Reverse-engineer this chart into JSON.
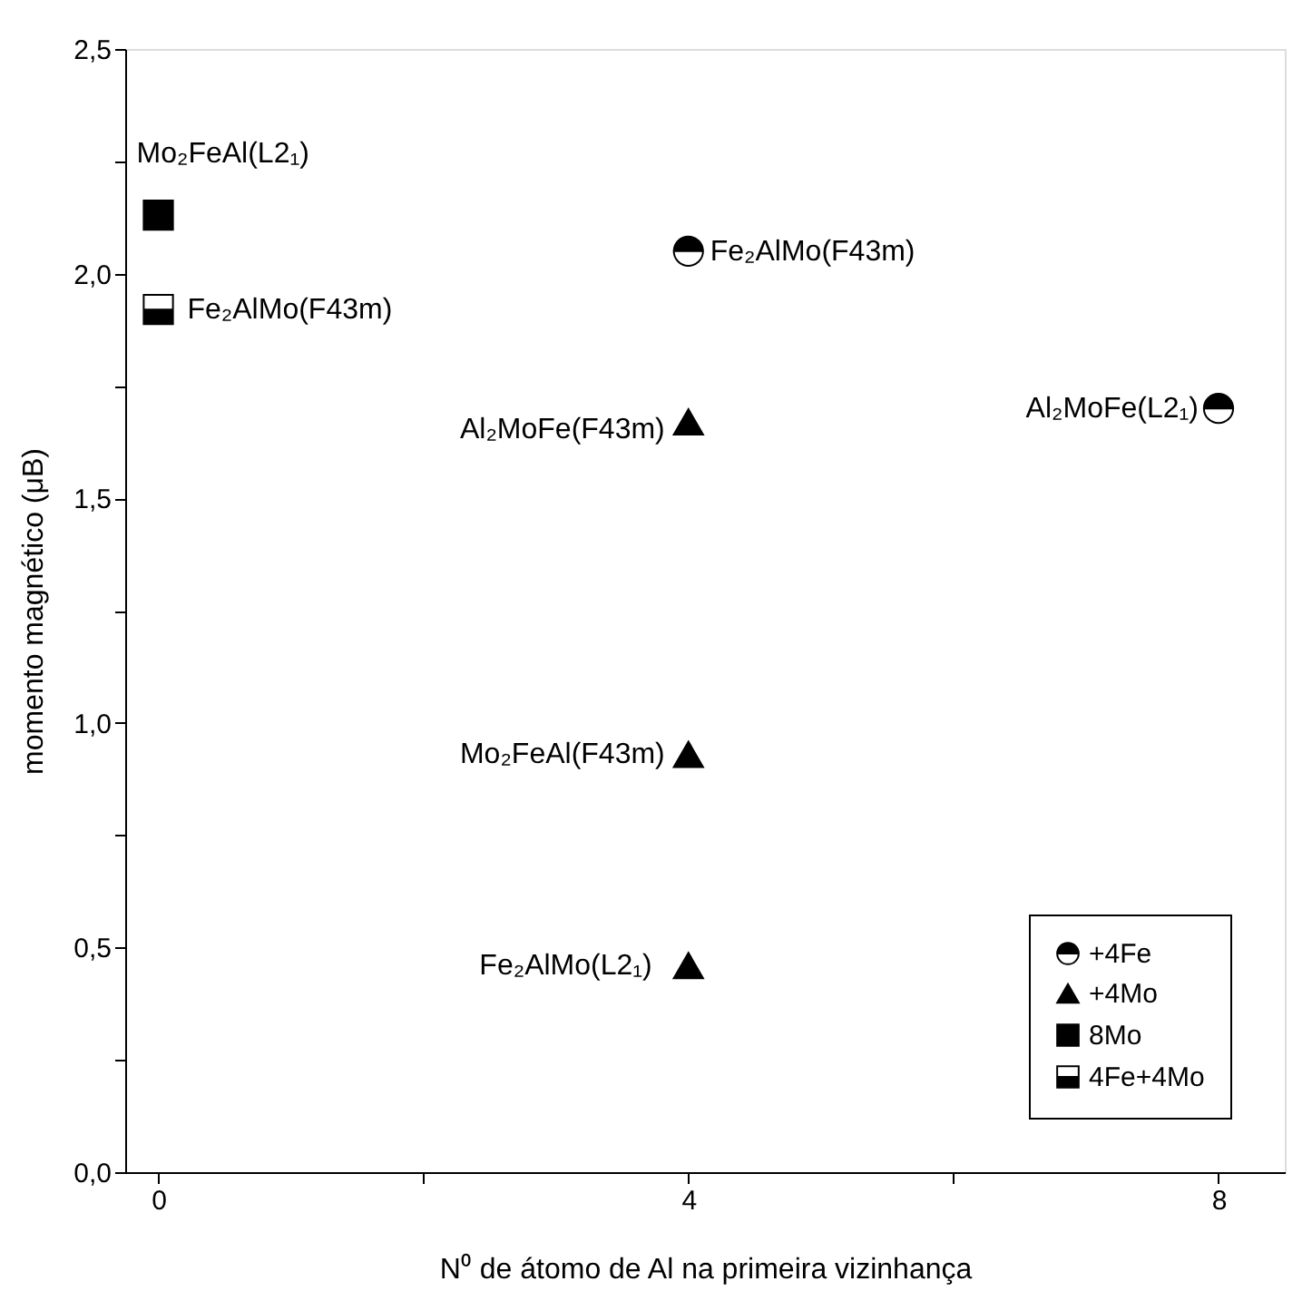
{
  "chart_data": {
    "type": "scatter",
    "xlabel": "N⁰ de átomo de Al na primeira vizinhança",
    "ylabel": "momento magnético (μB)",
    "xlim": [
      -0.25,
      8.5
    ],
    "xticks": [
      0,
      {
        "value": 2,
        "label": null
      },
      4,
      {
        "value": 6,
        "label": null
      },
      8
    ],
    "ylim": [
      0,
      2.5
    ],
    "yticks": [
      {
        "value": 0,
        "label": "0,0"
      },
      {
        "value": 0.25,
        "label": null
      },
      {
        "value": 0.5,
        "label": "0,5"
      },
      {
        "value": 0.75,
        "label": null
      },
      {
        "value": 1.0,
        "label": "1,0"
      },
      {
        "value": 1.25,
        "label": null
      },
      {
        "value": 1.5,
        "label": "1,5"
      },
      {
        "value": 1.75,
        "label": null
      },
      {
        "value": 2.0,
        "label": "2,0"
      },
      {
        "value": 2.25,
        "label": null
      },
      {
        "value": 2.5,
        "label": "2,5"
      }
    ],
    "grid": false,
    "legend": "bottom right",
    "series": [
      {
        "name": "+4Fe",
        "color": "#000000",
        "marker": "circle",
        "x": [
          4,
          8
        ],
        "values": [
          2.05,
          1.7
        ]
      },
      {
        "name": "+4Mo",
        "color": "#000000",
        "marker": "triangle",
        "x": [
          4,
          4,
          4
        ],
        "values": [
          1.67,
          0.93,
          0.46
        ]
      },
      {
        "name": "8Mo",
        "color": "#000000",
        "marker": "square",
        "x": [
          0
        ],
        "values": [
          2.13
        ]
      },
      {
        "name": "4Fe+4Mo",
        "color": "#000000",
        "marker": "square",
        "x": [
          0
        ],
        "values": [
          1.92
        ]
      }
    ],
    "annotations": [
      {
        "text": "Mo₂FeAl(L2₁)",
        "x": 0,
        "y": 2.13
      },
      {
        "text": "Fe₂AlMo(F43m)",
        "x": 0,
        "y": 1.92
      },
      {
        "text": "Fe₂AlMo(F43m)",
        "x": 4,
        "y": 2.05
      },
      {
        "text": "Al₂MoFe(F43m)",
        "x": 4,
        "y": 1.67
      },
      {
        "text": "Al₂MoFe(L2₁)",
        "x": 8,
        "y": 1.7
      },
      {
        "text": "Mo₂FeAl(F43m)",
        "x": 4,
        "y": 0.93
      },
      {
        "text": "Fe₂AlMo(L2₁)",
        "x": 4,
        "y": 0.46
      }
    ]
  }
}
